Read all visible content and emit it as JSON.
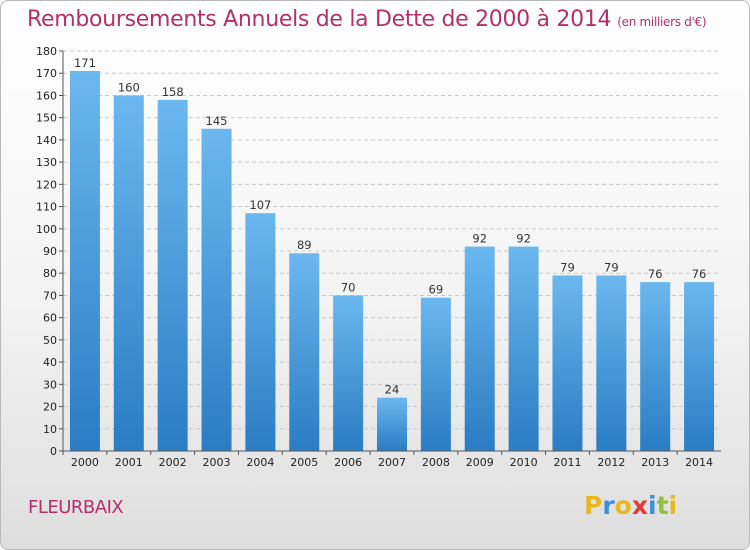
{
  "title": "Remboursements Annuels de la Dette de 2000 à 2014",
  "unit": "(en milliers d'€)",
  "commune": "FLEURBAIX",
  "logo": {
    "letters": [
      {
        "ch": "P",
        "color": "#e8b820"
      },
      {
        "ch": "r",
        "color": "#3c8fd8"
      },
      {
        "ch": "o",
        "color": "#e8b820"
      },
      {
        "ch": "x",
        "color": "#e23a3a"
      },
      {
        "ch": "i",
        "color": "#3c8fd8"
      },
      {
        "ch": "t",
        "color": "#8fc23a"
      },
      {
        "ch": "i",
        "color": "#e8b820"
      }
    ]
  },
  "colors": {
    "bar_top": "#6bb8ef",
    "bar_bottom": "#2a7cc4",
    "title": "#b5306a"
  },
  "chart_data": {
    "type": "bar",
    "categories": [
      "2000",
      "2001",
      "2002",
      "2003",
      "2004",
      "2005",
      "2006",
      "2007",
      "2008",
      "2009",
      "2010",
      "2011",
      "2012",
      "2013",
      "2014"
    ],
    "values": [
      171,
      160,
      158,
      145,
      107,
      89,
      70,
      24,
      69,
      92,
      92,
      79,
      79,
      76,
      76
    ],
    "title": "Remboursements Annuels de la Dette de 2000 à 2014",
    "xlabel": "",
    "ylabel": "",
    "ylim": [
      0,
      180
    ],
    "yticks": [
      0,
      10,
      20,
      30,
      40,
      50,
      60,
      70,
      80,
      90,
      100,
      110,
      120,
      130,
      140,
      150,
      160,
      170,
      180
    ],
    "grid": true,
    "legend": "none"
  }
}
